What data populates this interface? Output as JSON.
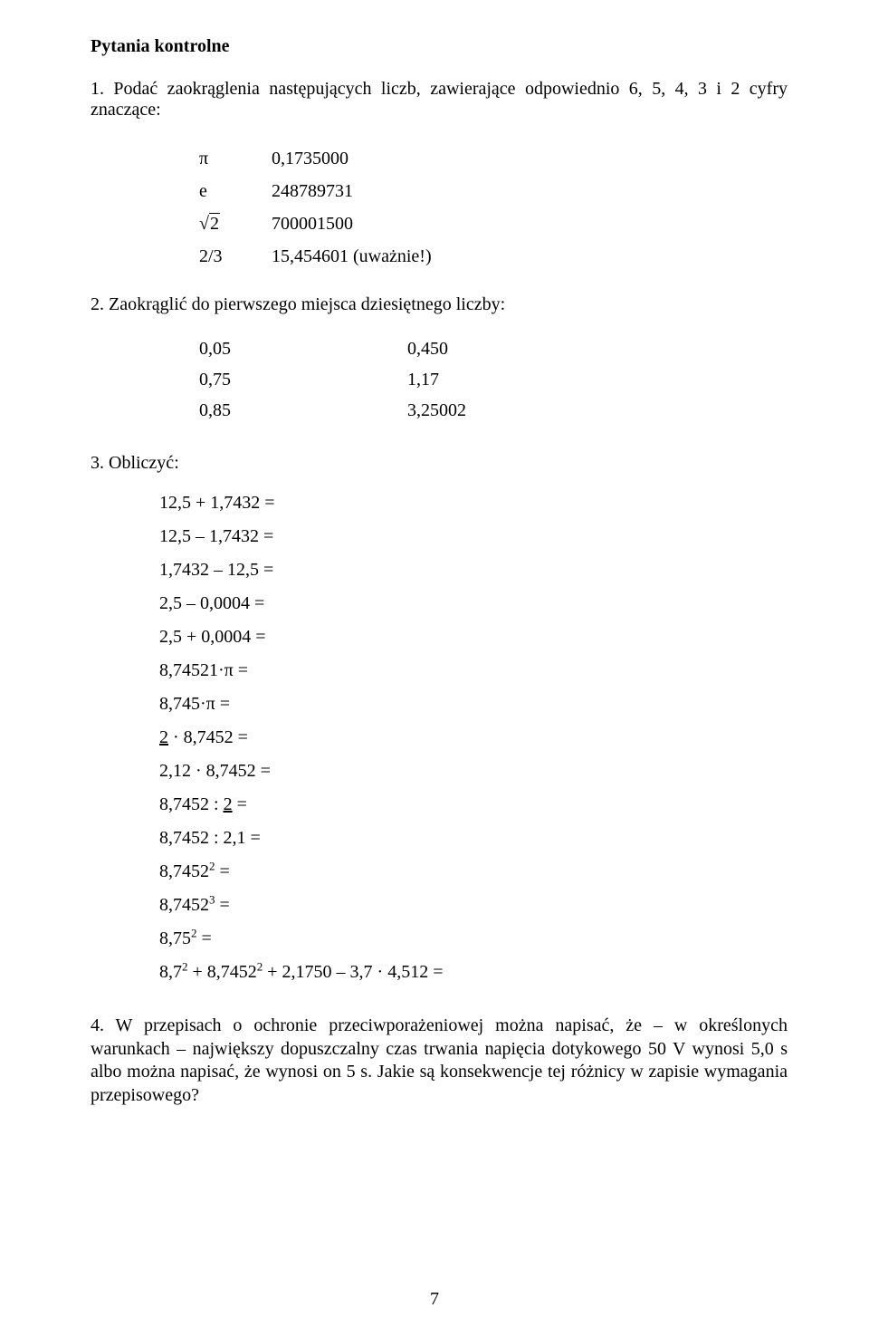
{
  "heading": "Pytania kontrolne",
  "q1": {
    "text": "1. Podać zaokrąglenia następujących liczb, zawierające odpowiednio 6, 5, 4, 3 i 2 cyfry znaczące:",
    "rows": [
      {
        "sym": "π",
        "val": "0,1735000",
        "isSqrt": false
      },
      {
        "sym": "e",
        "val": "248789731",
        "isSqrt": false
      },
      {
        "sym": "2",
        "val": "700001500",
        "isSqrt": true
      },
      {
        "sym": "2/3",
        "val": "15,454601 (uważnie!)",
        "isSqrt": false
      }
    ]
  },
  "q2": {
    "text": "2. Zaokrąglić do pierwszego miejsca dziesiętnego liczby:",
    "rows": [
      {
        "a": "0,05",
        "b": "0,450"
      },
      {
        "a": "0,75",
        "b": "1,17"
      },
      {
        "a": "0,85",
        "b": "3,25002"
      }
    ]
  },
  "q3": {
    "text": "3. Obliczyć:",
    "eqs": [
      {
        "txt": "12,5 + 1,7432 ="
      },
      {
        "txt": "12,5 – 1,7432 ="
      },
      {
        "txt": "1,7432 – 12,5 ="
      },
      {
        "txt": "2,5 – 0,0004 ="
      },
      {
        "txt": "2,5 + 0,0004 ="
      },
      {
        "txt": "8,74521·π ="
      },
      {
        "txt": "8,745·π ="
      },
      {
        "pre": "2",
        "post": " · 8,7452 =",
        "underlinePre": true
      },
      {
        "txt": "2,12 · 8,7452 ="
      },
      {
        "pre": "8,7452 : ",
        "mid": "2",
        "post": " =",
        "underlineMid": true
      },
      {
        "txt": "8,7452 : 2,1 ="
      },
      {
        "base": "8,7452",
        "exp": "2",
        "post": " ="
      },
      {
        "base": "8,7452",
        "exp": "3",
        "post": " ="
      },
      {
        "base": "8,75",
        "exp": "2",
        "post": " ="
      },
      {
        "parts": [
          {
            "base": "8,7",
            "exp": "2"
          },
          {
            "txt": " + "
          },
          {
            "base": "8,7452",
            "exp": "2"
          },
          {
            "txt": " + 2,1750 – 3,7 · 4,512 ="
          }
        ]
      }
    ]
  },
  "q4": {
    "text": "4. W przepisach o ochronie przeciwporażeniowej można napisać, że – w określonych warunkach – największy dopuszczalny czas trwania napięcia dotykowego 50 V wynosi 5,0 s albo można napisać, że wynosi on 5 s. Jakie są konsekwencje tej różnicy w zapisie wymagania przepisowego?"
  },
  "pageNumber": "7"
}
